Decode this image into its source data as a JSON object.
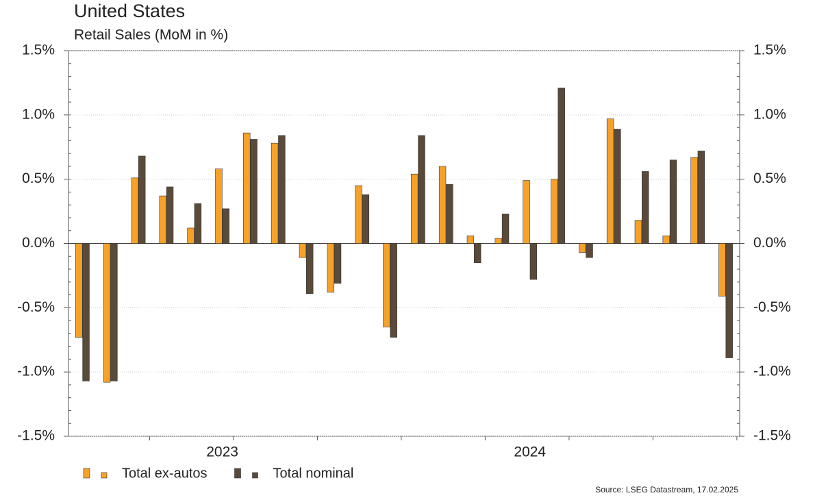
{
  "chart_data": {
    "type": "bar",
    "title": "United States",
    "subtitle": "Retail Sales (MoM in %)",
    "categories": [
      null,
      null,
      null,
      null,
      null,
      "2023",
      null,
      null,
      null,
      null,
      null,
      null,
      null,
      null,
      null,
      null,
      "2024",
      null,
      null,
      null,
      null,
      null,
      null,
      null
    ],
    "series": [
      {
        "name": "Total ex-autos",
        "color": "#f7a128",
        "values": [
          -0.73,
          -1.08,
          0.51,
          0.37,
          0.12,
          0.58,
          0.86,
          0.78,
          -0.11,
          -0.38,
          0.45,
          -0.65,
          0.54,
          0.6,
          0.06,
          0.04,
          0.49,
          0.5,
          -0.07,
          0.97,
          0.18,
          0.06,
          0.67,
          -0.41
        ]
      },
      {
        "name": "Total nominal",
        "color": "#5a4a3a",
        "values": [
          -1.07,
          -1.07,
          0.68,
          0.44,
          0.31,
          0.27,
          0.81,
          0.84,
          -0.39,
          -0.31,
          0.38,
          -0.73,
          0.84,
          0.46,
          -0.15,
          0.23,
          -0.28,
          1.21,
          -0.11,
          0.89,
          0.56,
          0.65,
          0.72,
          -0.89
        ]
      }
    ],
    "ylim": [
      -1.5,
      1.5
    ],
    "yticks": [
      {
        "value": -1.5,
        "label": "-1.5%"
      },
      {
        "value": -1.0,
        "label": "-1.0%"
      },
      {
        "value": -0.5,
        "label": "-0.5%"
      },
      {
        "value": 0,
        "label": "0.0%"
      },
      {
        "value": 0.5,
        "label": "0.5%"
      },
      {
        "value": 1.0,
        "label": "1.0%"
      },
      {
        "value": 1.5,
        "label": "1.5%"
      }
    ],
    "grid": true,
    "source": "Source: LSEG Datastream, 17.02.2025"
  }
}
